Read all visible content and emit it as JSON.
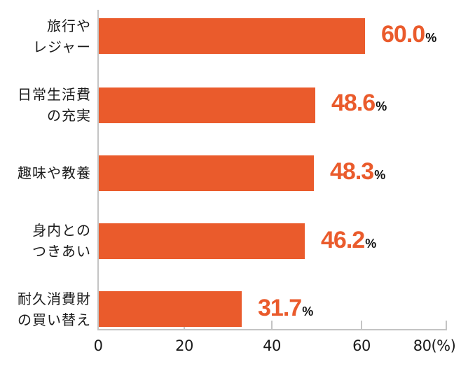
{
  "chart_data": {
    "type": "bar",
    "orientation": "horizontal",
    "title": "",
    "xlabel": "(%)",
    "ylabel": "",
    "categories": [
      "旅行や\nレジャー",
      "日常生活費\nの充実",
      "趣味や教養",
      "身内との\nつきあい",
      "耐久消費財\nの買い替え"
    ],
    "values": [
      60.0,
      48.6,
      48.3,
      46.2,
      31.7
    ],
    "value_labels": [
      "60.0",
      "48.6",
      "48.3",
      "46.2",
      "31.7"
    ],
    "value_suffix": "%",
    "xlim": [
      0,
      80
    ],
    "xticks": [
      0,
      20,
      40,
      60,
      80
    ],
    "xtick_labels": [
      "0",
      "20",
      "40",
      "60",
      "80(%)"
    ],
    "grid": false,
    "legend": null,
    "bar_color": "#EA5B2C",
    "value_color": "#EA5B2C"
  }
}
